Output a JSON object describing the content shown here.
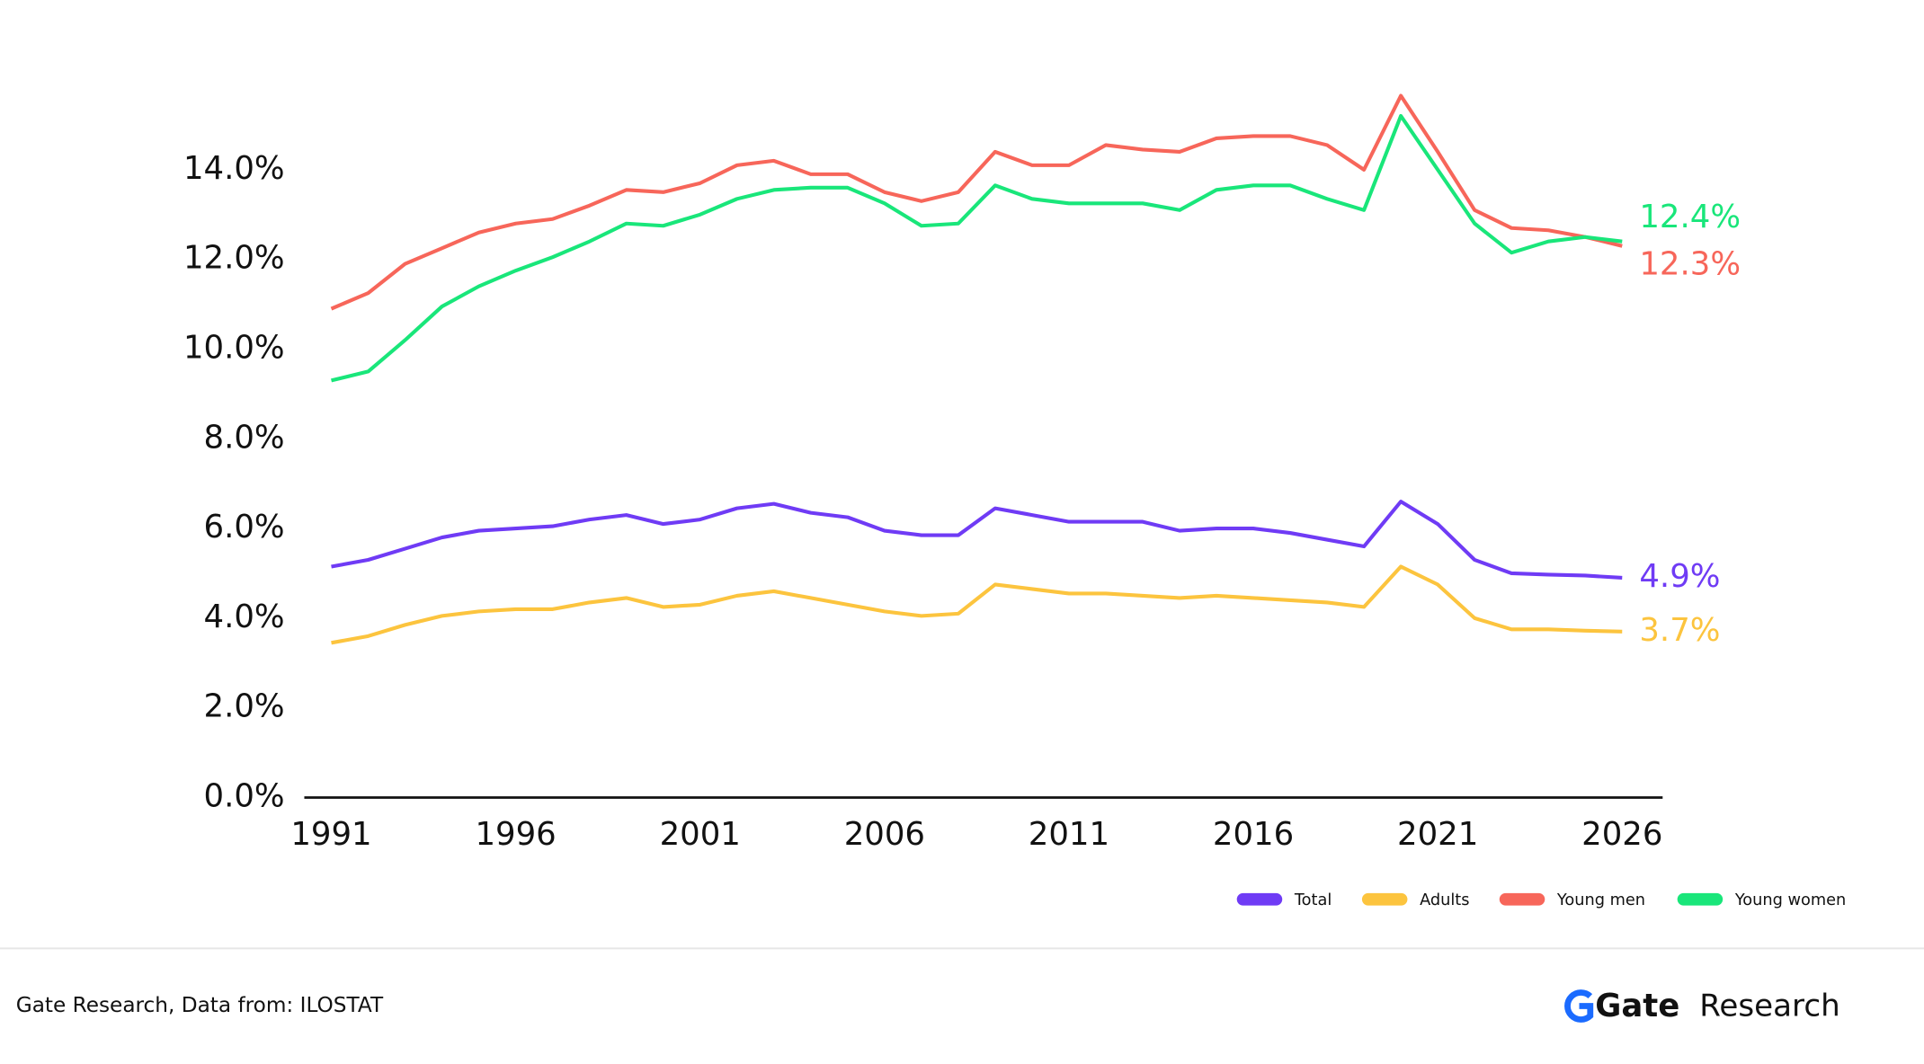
{
  "chart_data": {
    "type": "line",
    "x": [
      1991,
      1992,
      1993,
      1994,
      1995,
      1996,
      1997,
      1998,
      1999,
      2000,
      2001,
      2002,
      2003,
      2004,
      2005,
      2006,
      2007,
      2008,
      2009,
      2010,
      2011,
      2012,
      2013,
      2014,
      2015,
      2016,
      2017,
      2018,
      2019,
      2020,
      2021,
      2022,
      2023,
      2024,
      2025,
      2026
    ],
    "xlim": [
      1991,
      2026
    ],
    "xticks": [
      1991,
      1996,
      2001,
      2006,
      2011,
      2016,
      2021,
      2026
    ],
    "ylim": [
      0,
      16
    ],
    "yticks": [
      {
        "value": 0,
        "label": "0.0%"
      },
      {
        "value": 2,
        "label": "2.0%"
      },
      {
        "value": 4,
        "label": "4.0%"
      },
      {
        "value": 6,
        "label": "6.0%"
      },
      {
        "value": 8,
        "label": "8.0%"
      },
      {
        "value": 10,
        "label": "10.0%"
      },
      {
        "value": 12,
        "label": "12.0%"
      },
      {
        "value": 14,
        "label": "14.0%"
      }
    ],
    "legend": "bottom-right",
    "series": [
      {
        "name": "Total",
        "color": "#6f3bf5",
        "end_label": "4.9%",
        "values": [
          5.15,
          5.3,
          5.55,
          5.8,
          5.95,
          6.0,
          6.05,
          6.2,
          6.3,
          6.1,
          6.2,
          6.45,
          6.55,
          6.35,
          6.25,
          5.95,
          5.85,
          5.85,
          6.45,
          6.3,
          6.15,
          6.15,
          6.15,
          5.95,
          6.0,
          6.0,
          5.9,
          5.75,
          5.6,
          6.6,
          6.1,
          5.3,
          5.0,
          4.97,
          4.95,
          4.9
        ]
      },
      {
        "name": "Adults",
        "color": "#fcc43e",
        "end_label": "3.7%",
        "values": [
          3.45,
          3.6,
          3.85,
          4.05,
          4.15,
          4.2,
          4.2,
          4.35,
          4.45,
          4.25,
          4.3,
          4.5,
          4.6,
          4.45,
          4.3,
          4.15,
          4.05,
          4.1,
          4.75,
          4.65,
          4.55,
          4.55,
          4.5,
          4.45,
          4.5,
          4.45,
          4.4,
          4.35,
          4.25,
          5.15,
          4.75,
          4.0,
          3.75,
          3.75,
          3.72,
          3.7
        ]
      },
      {
        "name": "Young men",
        "color": "#f7665a",
        "end_label": "12.3%",
        "values": [
          10.9,
          11.25,
          11.9,
          12.25,
          12.6,
          12.8,
          12.9,
          13.2,
          13.55,
          13.5,
          13.7,
          14.1,
          14.2,
          13.9,
          13.9,
          13.5,
          13.3,
          13.5,
          14.4,
          14.1,
          14.1,
          14.55,
          14.45,
          14.4,
          14.7,
          14.75,
          14.75,
          14.55,
          14.0,
          15.65,
          14.4,
          13.1,
          12.7,
          12.65,
          12.5,
          12.3
        ]
      },
      {
        "name": "Young women",
        "color": "#19e67a",
        "end_label": "12.4%",
        "values": [
          9.3,
          9.5,
          10.2,
          10.95,
          11.4,
          11.75,
          12.05,
          12.4,
          12.8,
          12.75,
          13.0,
          13.35,
          13.55,
          13.6,
          13.6,
          13.25,
          12.75,
          12.8,
          13.65,
          13.35,
          13.25,
          13.25,
          13.25,
          13.1,
          13.55,
          13.65,
          13.65,
          13.35,
          13.1,
          15.2,
          14.0,
          12.8,
          12.15,
          12.4,
          12.5,
          12.4
        ]
      }
    ]
  },
  "footer": {
    "source": "Gate Research, Data from: ILOSTAT",
    "brand": "Gate",
    "brand_suffix": "Research"
  }
}
